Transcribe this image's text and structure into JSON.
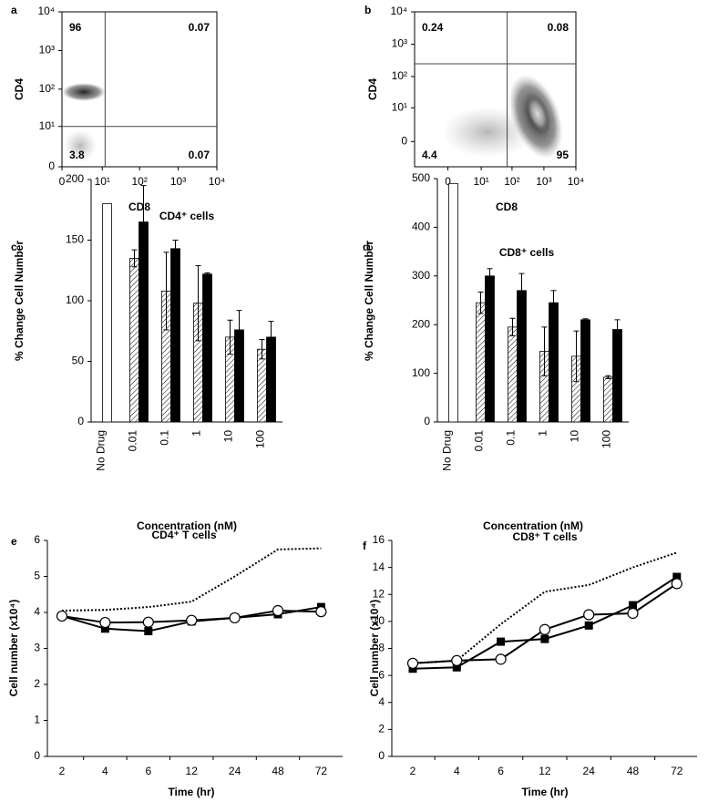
{
  "chart_data": [
    {
      "type": "flow",
      "panel": "a",
      "x_label": "CD8",
      "y_label": "CD4",
      "xlim": [
        0,
        10000
      ],
      "ylim": [
        0,
        10000
      ],
      "xticks": [
        0,
        {
          "value": 10,
          "label": "10¹"
        },
        {
          "value": 100,
          "label": "10²"
        },
        {
          "value": 1000,
          "label": "10³"
        },
        {
          "value": 10000,
          "label": "10⁴"
        }
      ],
      "yticks": [
        0,
        {
          "value": 10,
          "label": "10¹"
        },
        {
          "value": 100,
          "label": "10²"
        },
        {
          "value": 1000,
          "label": "10³"
        },
        {
          "value": 10000,
          "label": "10⁴"
        }
      ],
      "gate": {
        "x": 12,
        "y": 10
      },
      "quadrant_values": [
        96,
        0.07,
        3.8,
        0.07
      ]
    },
    {
      "type": "flow",
      "panel": "b",
      "x_label": "CD8",
      "y_label": "CD4",
      "xlim": [
        -10,
        10000
      ],
      "ylim": [
        -5,
        10000
      ],
      "xticks": [
        0,
        {
          "value": 10,
          "label": "10¹"
        },
        {
          "value": 100,
          "label": "10²"
        },
        {
          "value": 1000,
          "label": "10³"
        },
        {
          "value": 10000,
          "label": "10⁴"
        }
      ],
      "yticks": [
        0,
        {
          "value": 10,
          "label": "10¹"
        },
        {
          "value": 100,
          "label": "10²"
        },
        {
          "value": 1000,
          "label": "10³"
        },
        {
          "value": 10000,
          "label": "10⁴"
        }
      ],
      "gate": {
        "x": 70,
        "y": 250
      },
      "quadrant_values": [
        0.24,
        0.08,
        4.4,
        95
      ]
    },
    {
      "type": "bar",
      "panel": "c",
      "title": "CD4⁺ cells",
      "x_label": "Concentration (nM)",
      "y_label": "% Change Cell Number",
      "categories": [
        "No Drug",
        "0.01",
        "0.1",
        "1",
        "10",
        "100"
      ],
      "series": [
        {
          "color": "#ffffff",
          "values": [
            180,
            null,
            null,
            null,
            null,
            null
          ],
          "errors": [
            null,
            null,
            null,
            null,
            null,
            null
          ]
        },
        {
          "color": "#ffffff",
          "pattern": "hatch",
          "values": [
            null,
            135,
            108,
            98,
            70,
            60
          ],
          "errors": [
            null,
            7,
            32,
            31,
            14,
            8
          ]
        },
        {
          "color": "#000000",
          "values": [
            null,
            165,
            143,
            122,
            76,
            70
          ],
          "errors": [
            null,
            30,
            7,
            1,
            16,
            13
          ]
        }
      ],
      "ylim": [
        0,
        200
      ],
      "yticks": [
        0,
        50,
        100,
        150,
        200
      ]
    },
    {
      "type": "bar",
      "panel": "d",
      "title": "CD8⁺ cells",
      "x_label": "Concentration (nM)",
      "y_label": "% Change Cell Number",
      "categories": [
        "No Drug",
        "0.01",
        "0.1",
        "1",
        "10",
        "100"
      ],
      "series": [
        {
          "color": "#ffffff",
          "values": [
            490,
            null,
            null,
            null,
            null,
            null
          ],
          "errors": [
            null,
            null,
            null,
            null,
            null,
            null
          ]
        },
        {
          "color": "#ffffff",
          "pattern": "hatch",
          "values": [
            null,
            245,
            195,
            145,
            135,
            92
          ],
          "errors": [
            null,
            22,
            18,
            50,
            52,
            3
          ]
        },
        {
          "color": "#000000",
          "values": [
            null,
            300,
            270,
            245,
            210,
            190
          ],
          "errors": [
            null,
            15,
            35,
            25,
            2,
            20
          ]
        }
      ],
      "ylim": [
        0,
        500
      ],
      "yticks": [
        0,
        100,
        200,
        300,
        400,
        500
      ]
    },
    {
      "type": "line",
      "panel": "e",
      "title": "CD4⁺ T cells",
      "x_label": "Time (hr)",
      "y_label": "Cell number (x10⁴)",
      "categories": [
        "2",
        "4",
        "6",
        "12",
        "24",
        "48",
        "72"
      ],
      "series": [
        {
          "color": "#000000",
          "dash": true,
          "marker": "none",
          "values": [
            4.05,
            4.07,
            4.15,
            4.3,
            5.0,
            5.75,
            5.78
          ]
        },
        {
          "color": "#000000",
          "dash": false,
          "marker": "square",
          "values": [
            3.9,
            3.55,
            3.48,
            3.75,
            3.85,
            3.95,
            4.15
          ]
        },
        {
          "color": "#000000",
          "dash": false,
          "marker": "circle",
          "values": [
            3.9,
            3.72,
            3.73,
            3.78,
            3.85,
            4.05,
            4.02
          ]
        }
      ],
      "ylim": [
        0,
        6
      ],
      "yticks": [
        0,
        1,
        2,
        3,
        4,
        5,
        6
      ]
    },
    {
      "type": "line",
      "panel": "f",
      "title": "CD8⁺ T cells",
      "x_label": "Time (hr)",
      "y_label": "Cell number (x10⁴)",
      "categories": [
        "2",
        "4",
        "6",
        "12",
        "24",
        "48",
        "72"
      ],
      "series": [
        {
          "color": "#000000",
          "dash": true,
          "marker": "none",
          "values": [
            6.9,
            7.1,
            9.8,
            12.2,
            12.7,
            14.0,
            15.1
          ]
        },
        {
          "color": "#000000",
          "dash": false,
          "marker": "square",
          "values": [
            6.5,
            6.6,
            8.5,
            8.7,
            9.7,
            11.2,
            13.3
          ]
        },
        {
          "color": "#000000",
          "dash": false,
          "marker": "circle",
          "values": [
            6.9,
            7.1,
            7.2,
            9.4,
            10.5,
            10.6,
            12.8
          ]
        }
      ],
      "ylim": [
        0,
        16
      ],
      "yticks": [
        0,
        2,
        4,
        6,
        8,
        10,
        12,
        14,
        16
      ]
    }
  ]
}
